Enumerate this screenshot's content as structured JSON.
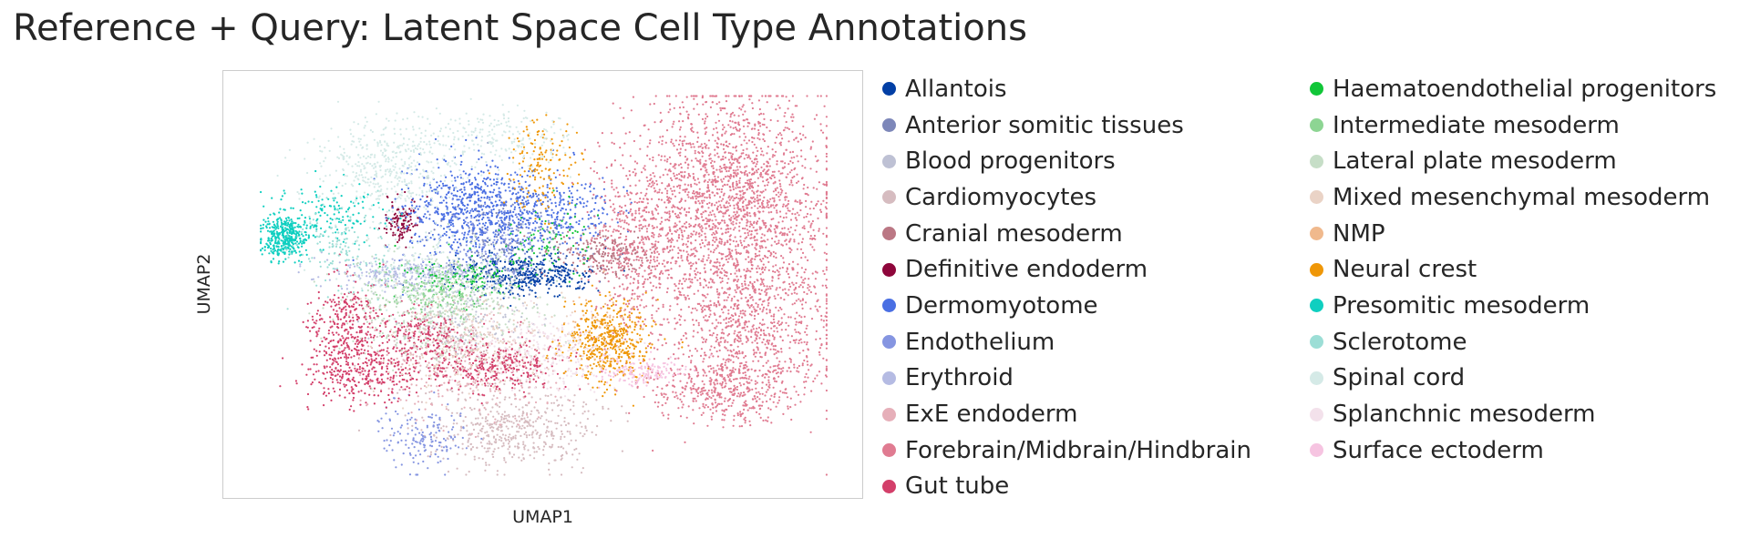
{
  "chart_data": {
    "type": "scatter",
    "title": "Reference + Query: Latent Space Cell Type Annotations",
    "xlabel": "UMAP1",
    "ylabel": "UMAP2",
    "legend_position": "right, two columns",
    "grid": false,
    "series": [
      {
        "name": "Allantois",
        "color": "#023fa5",
        "clusters": [
          {
            "x": 0.47,
            "y": 0.47,
            "sx": 0.06,
            "sy": 0.025,
            "n": 420
          }
        ]
      },
      {
        "name": "Anterior somitic tissues",
        "color": "#7d87b9",
        "clusters": [
          {
            "x": 0.44,
            "y": 0.38,
            "sx": 0.06,
            "sy": 0.06,
            "n": 200
          }
        ]
      },
      {
        "name": "Blood progenitors",
        "color": "#bec1d4",
        "clusters": [
          {
            "x": 0.36,
            "y": 0.58,
            "sx": 0.06,
            "sy": 0.05,
            "n": 180
          }
        ]
      },
      {
        "name": "Cardiomyocytes",
        "color": "#d6bcc0",
        "clusters": [
          {
            "x": 0.45,
            "y": 0.86,
            "sx": 0.07,
            "sy": 0.05,
            "n": 500
          },
          {
            "x": 0.33,
            "y": 0.64,
            "sx": 0.05,
            "sy": 0.05,
            "n": 150
          }
        ]
      },
      {
        "name": "Cranial mesoderm",
        "color": "#bb7784",
        "clusters": [
          {
            "x": 0.6,
            "y": 0.42,
            "sx": 0.04,
            "sy": 0.03,
            "n": 220
          }
        ]
      },
      {
        "name": "Definitive endoderm",
        "color": "#8e063b",
        "clusters": [
          {
            "x": 0.26,
            "y": 0.34,
            "sx": 0.015,
            "sy": 0.03,
            "n": 120
          }
        ]
      },
      {
        "name": "Dermomyotome",
        "color": "#4a6fe3",
        "clusters": [
          {
            "x": 0.38,
            "y": 0.31,
            "sx": 0.06,
            "sy": 0.06,
            "n": 700
          },
          {
            "x": 0.52,
            "y": 0.32,
            "sx": 0.05,
            "sy": 0.05,
            "n": 250
          }
        ]
      },
      {
        "name": "Endothelium",
        "color": "#8595e1",
        "clusters": [
          {
            "x": 0.3,
            "y": 0.88,
            "sx": 0.04,
            "sy": 0.04,
            "n": 160
          },
          {
            "x": 0.42,
            "y": 0.4,
            "sx": 0.05,
            "sy": 0.05,
            "n": 150
          }
        ]
      },
      {
        "name": "Erythroid",
        "color": "#b5bbe3",
        "clusters": [
          {
            "x": 0.28,
            "y": 0.47,
            "sx": 0.07,
            "sy": 0.02,
            "n": 320
          }
        ]
      },
      {
        "name": "ExE endoderm",
        "color": "#e6afb9",
        "clusters": [
          {
            "x": 0.37,
            "y": 0.72,
            "sx": 0.08,
            "sy": 0.06,
            "n": 260
          }
        ]
      },
      {
        "name": "Forebrain/Midbrain/Hindbrain",
        "color": "#e07b91",
        "clusters": [
          {
            "x": 0.82,
            "y": 0.28,
            "sx": 0.08,
            "sy": 0.13,
            "n": 1900
          },
          {
            "x": 0.85,
            "y": 0.6,
            "sx": 0.07,
            "sy": 0.1,
            "n": 900
          },
          {
            "x": 0.8,
            "y": 0.76,
            "sx": 0.06,
            "sy": 0.04,
            "n": 400
          },
          {
            "x": 0.66,
            "y": 0.4,
            "sx": 0.04,
            "sy": 0.12,
            "n": 500
          }
        ]
      },
      {
        "name": "Gut tube",
        "color": "#d33f6a",
        "clusters": [
          {
            "x": 0.16,
            "y": 0.6,
            "sx": 0.03,
            "sy": 0.06,
            "n": 300
          },
          {
            "x": 0.2,
            "y": 0.72,
            "sx": 0.05,
            "sy": 0.04,
            "n": 350
          },
          {
            "x": 0.42,
            "y": 0.7,
            "sx": 0.06,
            "sy": 0.03,
            "n": 350
          },
          {
            "x": 0.29,
            "y": 0.62,
            "sx": 0.04,
            "sy": 0.03,
            "n": 200
          }
        ]
      },
      {
        "name": "Haematoendothelial progenitors",
        "color": "#11c638",
        "clusters": [
          {
            "x": 0.36,
            "y": 0.48,
            "sx": 0.05,
            "sy": 0.03,
            "n": 120
          },
          {
            "x": 0.5,
            "y": 0.38,
            "sx": 0.04,
            "sy": 0.05,
            "n": 80
          }
        ]
      },
      {
        "name": "Intermediate mesoderm",
        "color": "#8dd593",
        "clusters": [
          {
            "x": 0.33,
            "y": 0.52,
            "sx": 0.05,
            "sy": 0.03,
            "n": 200
          }
        ]
      },
      {
        "name": "Lateral plate mesoderm",
        "color": "#c6dec7",
        "clusters": [
          {
            "x": 0.32,
            "y": 0.55,
            "sx": 0.09,
            "sy": 0.07,
            "n": 400
          }
        ]
      },
      {
        "name": "Mixed mesenchymal mesoderm",
        "color": "#ead3c6",
        "clusters": [
          {
            "x": 0.38,
            "y": 0.64,
            "sx": 0.08,
            "sy": 0.06,
            "n": 300
          }
        ]
      },
      {
        "name": "NMP",
        "color": "#f0b98d",
        "clusters": [
          {
            "x": 0.6,
            "y": 0.6,
            "sx": 0.03,
            "sy": 0.04,
            "n": 60
          }
        ]
      },
      {
        "name": "Neural crest",
        "color": "#ef9708",
        "clusters": [
          {
            "x": 0.61,
            "y": 0.64,
            "sx": 0.035,
            "sy": 0.05,
            "n": 500
          },
          {
            "x": 0.5,
            "y": 0.2,
            "sx": 0.03,
            "sy": 0.06,
            "n": 150
          }
        ]
      },
      {
        "name": "Presomitic mesoderm",
        "color": "#0fcfc0",
        "clusters": [
          {
            "x": 0.06,
            "y": 0.38,
            "sx": 0.02,
            "sy": 0.025,
            "n": 380
          },
          {
            "x": 0.13,
            "y": 0.32,
            "sx": 0.05,
            "sy": 0.04,
            "n": 160
          }
        ]
      },
      {
        "name": "Sclerotome",
        "color": "#9cded6",
        "clusters": [
          {
            "x": 0.16,
            "y": 0.4,
            "sx": 0.04,
            "sy": 0.05,
            "n": 150
          }
        ]
      },
      {
        "name": "Spinal cord",
        "color": "#d5eae7",
        "clusters": [
          {
            "x": 0.23,
            "y": 0.2,
            "sx": 0.06,
            "sy": 0.06,
            "n": 450
          },
          {
            "x": 0.43,
            "y": 0.13,
            "sx": 0.06,
            "sy": 0.04,
            "n": 200
          },
          {
            "x": 0.3,
            "y": 0.45,
            "sx": 0.07,
            "sy": 0.06,
            "n": 200
          }
        ]
      },
      {
        "name": "Splanchnic mesoderm",
        "color": "#f3e1eb",
        "clusters": [
          {
            "x": 0.5,
            "y": 0.66,
            "sx": 0.06,
            "sy": 0.05,
            "n": 260
          }
        ]
      },
      {
        "name": "Surface ectoderm",
        "color": "#f6c4e1",
        "clusters": [
          {
            "x": 0.67,
            "y": 0.72,
            "sx": 0.04,
            "sy": 0.02,
            "n": 160
          }
        ]
      }
    ]
  }
}
